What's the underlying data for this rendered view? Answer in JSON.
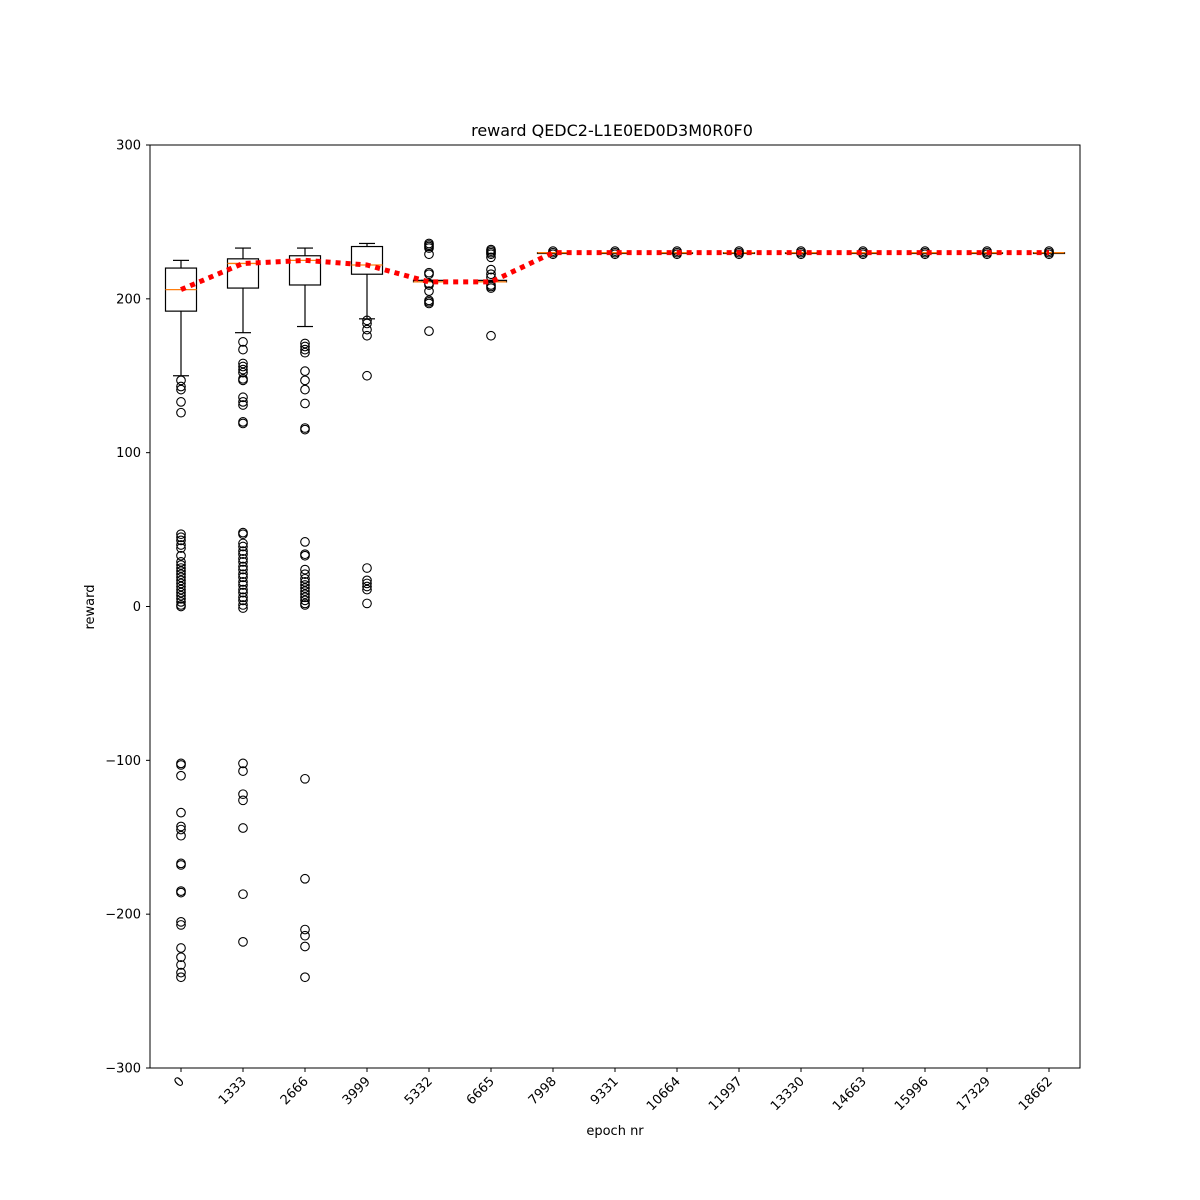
{
  "chart_data": {
    "type": "box",
    "title": "reward QEDC2-L1E0ED0D3M0R0F0",
    "xlabel": "epoch nr",
    "ylabel": "reward",
    "ylim": [
      -300,
      300
    ],
    "yticks": [
      -300,
      -200,
      -100,
      0,
      100,
      200,
      300
    ],
    "ytick_labels": [
      "−300",
      "−200",
      "−100",
      "0",
      "100",
      "200",
      "300"
    ],
    "categories": [
      "0",
      "1333",
      "2666",
      "3999",
      "5332",
      "6665",
      "7998",
      "9331",
      "10664",
      "11997",
      "13330",
      "14663",
      "15996",
      "17329",
      "18662"
    ],
    "boxes": [
      {
        "q1": 192,
        "median": 206,
        "q3": 220,
        "whisker_low": 150,
        "whisker_high": 225,
        "outliers": [
          147,
          143,
          141,
          133,
          126,
          47,
          45,
          43,
          40,
          38,
          33,
          29,
          27,
          25,
          23,
          21,
          19,
          17,
          15,
          13,
          11,
          9,
          7,
          5,
          3,
          1,
          0,
          -102,
          -103,
          -110,
          -134,
          -143,
          -145,
          -149,
          -167,
          -168,
          -185,
          -186,
          -205,
          -207,
          -222,
          -228,
          -233,
          -238,
          -241
        ]
      },
      {
        "q1": 207,
        "median": 223,
        "q3": 226,
        "whisker_low": 178,
        "whisker_high": 233,
        "outliers": [
          172,
          167,
          158,
          156,
          154,
          152,
          148,
          147,
          136,
          133,
          131,
          120,
          119,
          48,
          47,
          41,
          39,
          36,
          34,
          31,
          29,
          26,
          24,
          21,
          19,
          16,
          14,
          11,
          9,
          6,
          4,
          1,
          -1,
          -102,
          -107,
          -122,
          -126,
          -144,
          -187,
          -218
        ]
      },
      {
        "q1": 209,
        "median": 225,
        "q3": 228,
        "whisker_low": 182,
        "whisker_high": 233,
        "outliers": [
          171,
          169,
          167,
          165,
          153,
          147,
          141,
          132,
          116,
          115,
          42,
          34,
          33,
          24,
          21,
          18,
          16,
          14,
          12,
          10,
          8,
          6,
          4,
          2,
          1,
          -112,
          -177,
          -210,
          -214,
          -221,
          -241
        ]
      },
      {
        "q1": 216,
        "median": 222,
        "q3": 234,
        "whisker_low": 187,
        "whisker_high": 236,
        "outliers": [
          186,
          184,
          180,
          176,
          150,
          25,
          17,
          15,
          13,
          11,
          2
        ]
      },
      {
        "q1": 211,
        "median": 211,
        "q3": 212,
        "whisker_low": 211,
        "whisker_high": 212,
        "outliers": [
          236,
          235,
          234,
          233,
          229,
          217,
          216,
          210,
          209,
          205,
          199,
          198,
          197,
          179
        ]
      },
      {
        "q1": 211,
        "median": 211,
        "q3": 212,
        "whisker_low": 211,
        "whisker_high": 212,
        "outliers": [
          232,
          231,
          230,
          229,
          227,
          219,
          216,
          214,
          209,
          208,
          207,
          176
        ]
      },
      {
        "q1": 230,
        "median": 230,
        "q3": 230,
        "whisker_low": 230,
        "whisker_high": 230,
        "outliers": [
          231,
          230,
          229
        ]
      },
      {
        "q1": 230,
        "median": 230,
        "q3": 230,
        "whisker_low": 230,
        "whisker_high": 230,
        "outliers": [
          231,
          230,
          229
        ]
      },
      {
        "q1": 230,
        "median": 230,
        "q3": 230,
        "whisker_low": 230,
        "whisker_high": 230,
        "outliers": [
          231,
          230,
          229
        ]
      },
      {
        "q1": 230,
        "median": 230,
        "q3": 230,
        "whisker_low": 230,
        "whisker_high": 230,
        "outliers": [
          231,
          230,
          229
        ]
      },
      {
        "q1": 230,
        "median": 230,
        "q3": 230,
        "whisker_low": 230,
        "whisker_high": 230,
        "outliers": [
          231,
          230,
          229
        ]
      },
      {
        "q1": 230,
        "median": 230,
        "q3": 230,
        "whisker_low": 230,
        "whisker_high": 230,
        "outliers": [
          231,
          230,
          229
        ]
      },
      {
        "q1": 230,
        "median": 230,
        "q3": 230,
        "whisker_low": 230,
        "whisker_high": 230,
        "outliers": [
          231,
          230,
          229
        ]
      },
      {
        "q1": 230,
        "median": 230,
        "q3": 230,
        "whisker_low": 230,
        "whisker_high": 230,
        "outliers": [
          231,
          230,
          229
        ]
      },
      {
        "q1": 230,
        "median": 230,
        "q3": 230,
        "whisker_low": 230,
        "whisker_high": 230,
        "outliers": [
          231,
          230,
          229
        ]
      }
    ],
    "trend_line": {
      "values": [
        206,
        223,
        225,
        222,
        211,
        211,
        230,
        230,
        230,
        230,
        230,
        230,
        230,
        230,
        230
      ],
      "color": "#ff0000",
      "style": "dotted"
    },
    "colors": {
      "box": "#000000",
      "median": "#ff7f0e",
      "outlier": "#000000",
      "trend": "#ff0000"
    },
    "grid": false,
    "xtick_rotation": "45 degrees"
  }
}
